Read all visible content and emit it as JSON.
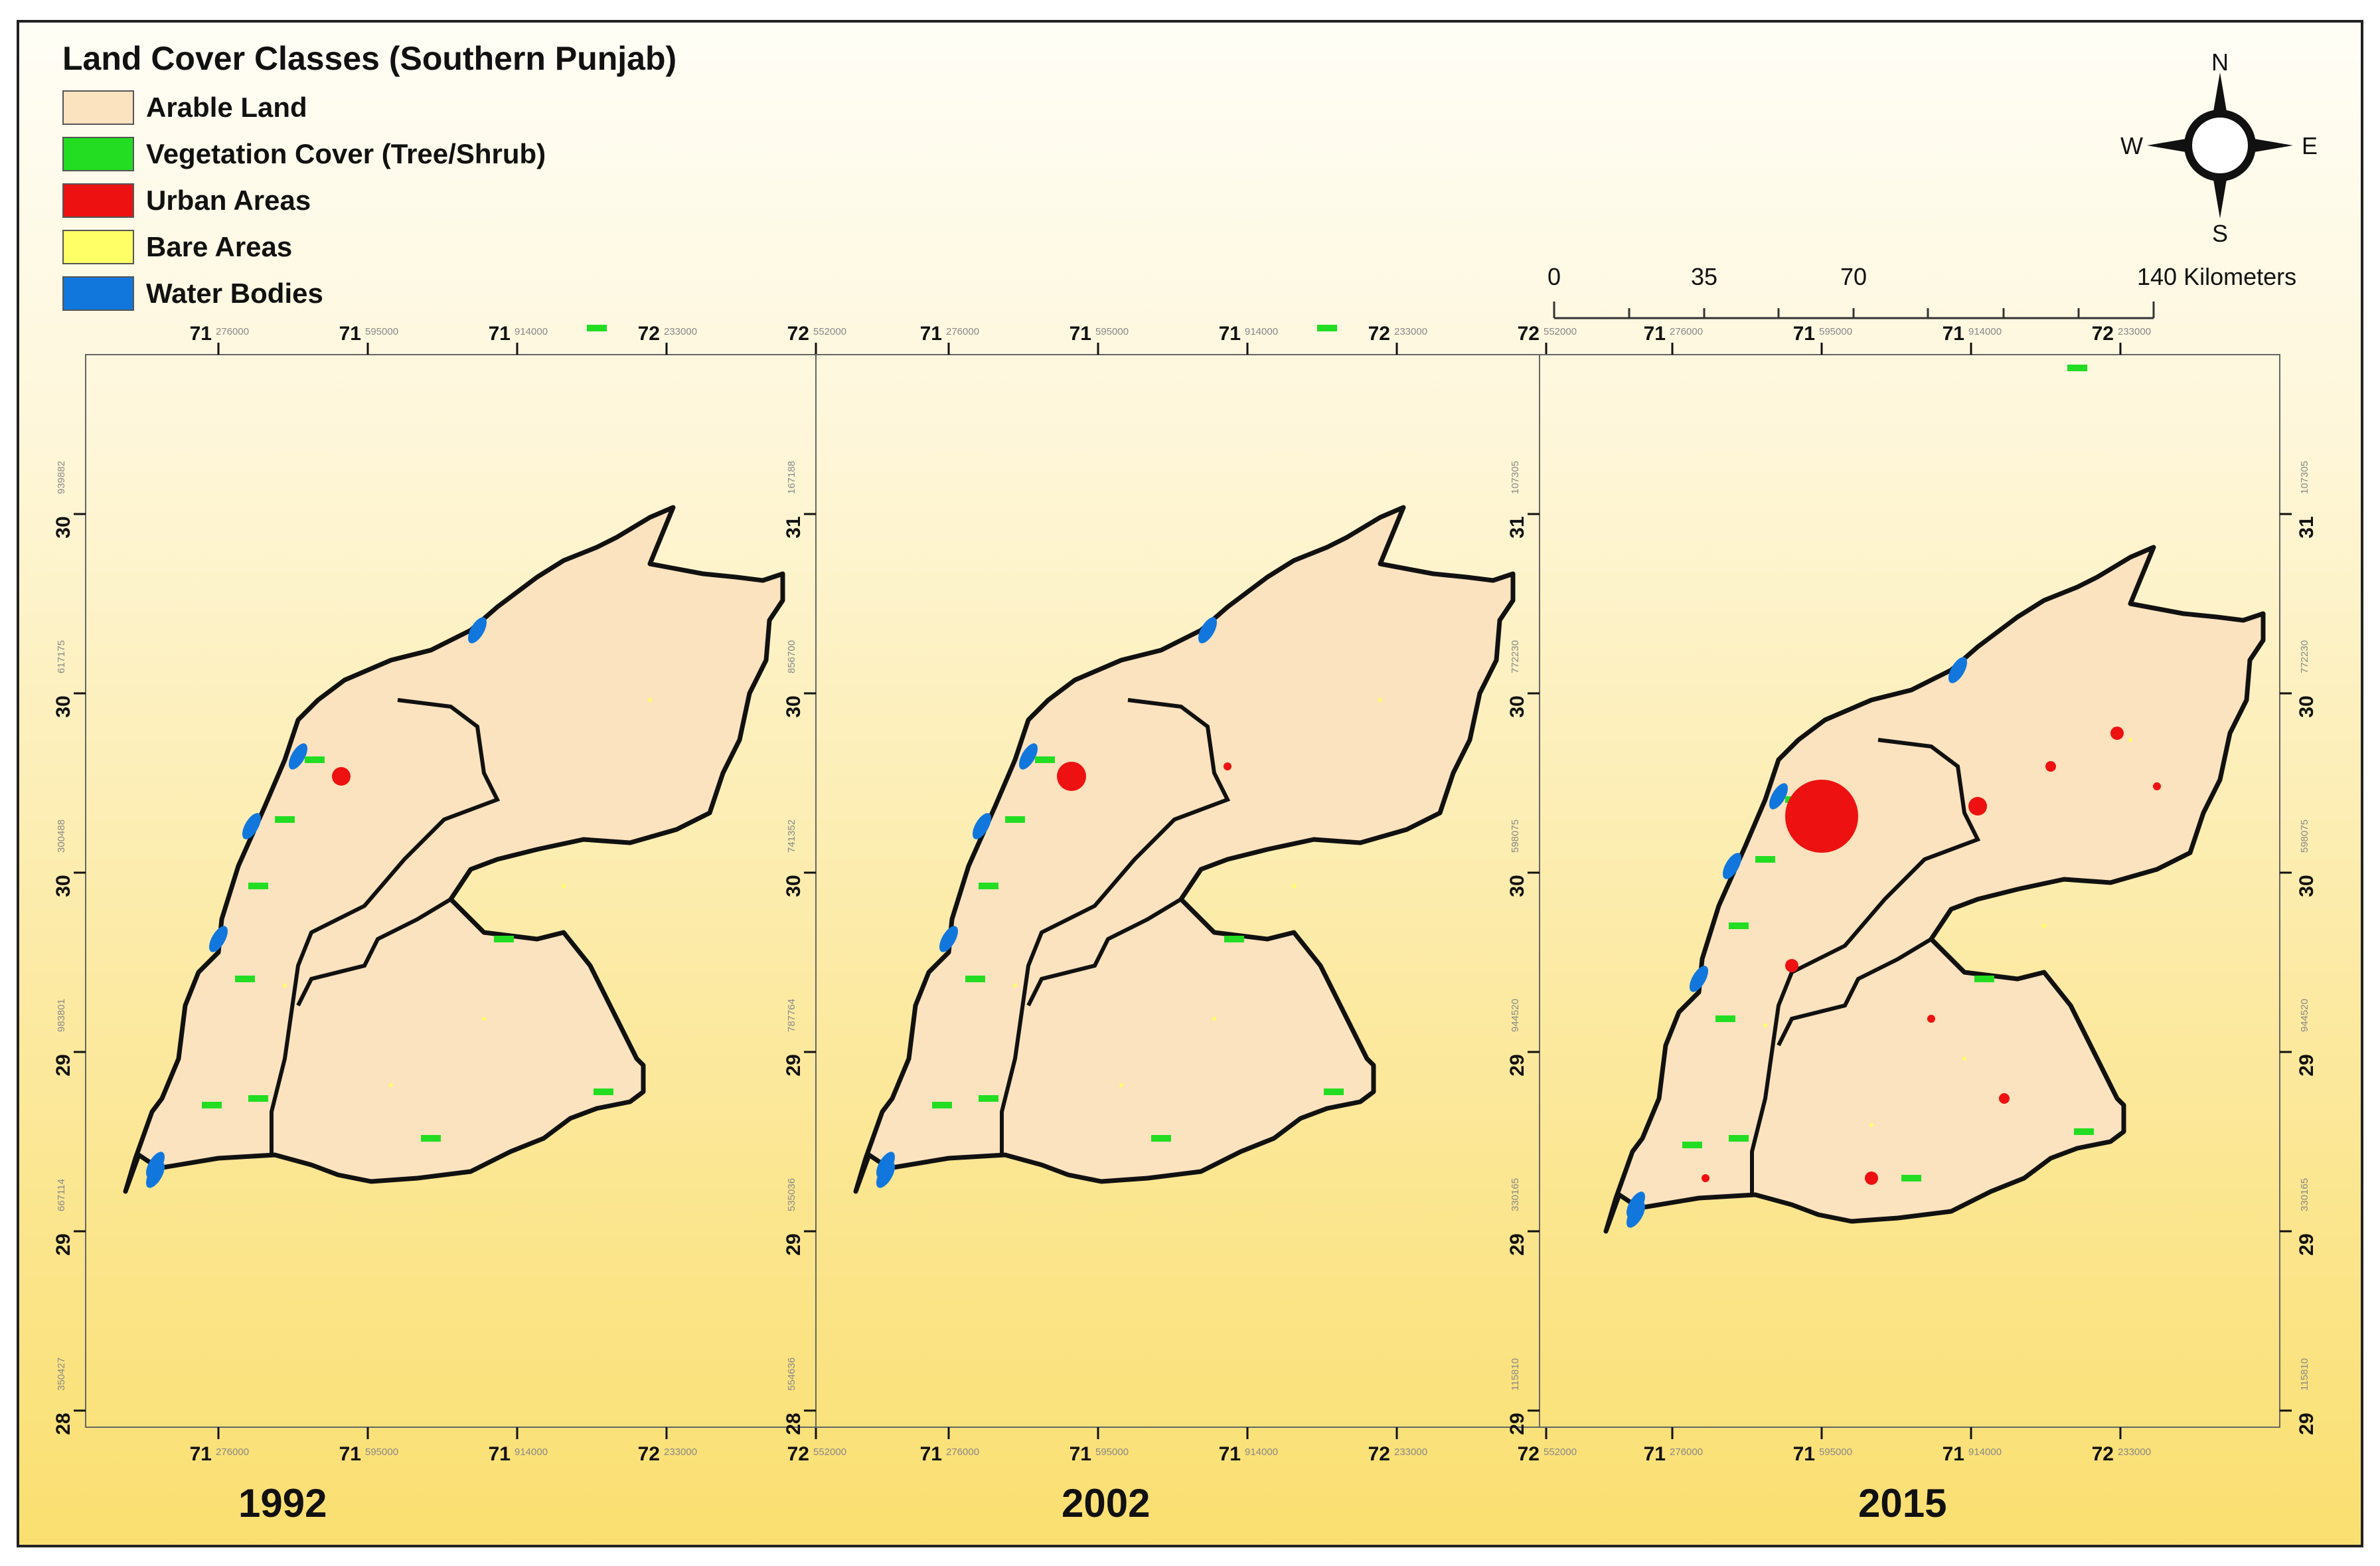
{
  "legend": {
    "title": "Land Cover Classes (Southern Punjab)",
    "items": [
      {
        "label": "Arable Land",
        "color": "#fbe3bf"
      },
      {
        "label": "Vegetation Cover (Tree/Shrub)",
        "color": "#22dd22"
      },
      {
        "label": "Urban Areas",
        "color": "#ee1111"
      },
      {
        "label": "Bare Areas",
        "color": "#ffff66"
      },
      {
        "label": "Water Bodies",
        "color": "#1177dd"
      }
    ]
  },
  "compass": {
    "north": "N",
    "south": "S",
    "east": "E",
    "west": "W",
    "icon": "north-arrow-icon"
  },
  "scale_bar": {
    "labels": [
      "0",
      "35",
      "70",
      "140 Kilometers"
    ]
  },
  "maps": [
    {
      "year": "1992",
      "top_ticks": [
        {
          "deg": "71",
          "sub": "276000"
        },
        {
          "deg": "71",
          "sub": "595000"
        },
        {
          "deg": "71",
          "sub": "914000"
        },
        {
          "deg": "72",
          "sub": "233000"
        },
        {
          "deg": "72",
          "sub": "552000"
        }
      ],
      "bottom_ticks": [
        {
          "deg": "71",
          "sub": "276000"
        },
        {
          "deg": "71",
          "sub": "595000"
        },
        {
          "deg": "71",
          "sub": "914000"
        },
        {
          "deg": "72",
          "sub": "233000"
        },
        {
          "deg": "72",
          "sub": "552000"
        }
      ],
      "left_ticks": [
        {
          "deg": "30",
          "sub": "939882"
        },
        {
          "deg": "30",
          "sub": "617175"
        },
        {
          "deg": "30",
          "sub": "300488"
        },
        {
          "deg": "29",
          "sub": "983801"
        },
        {
          "deg": "29",
          "sub": "667114"
        },
        {
          "deg": "28",
          "sub": "350427"
        }
      ]
    },
    {
      "year": "2002",
      "top_ticks": [
        {
          "deg": "71",
          "sub": "276000"
        },
        {
          "deg": "71",
          "sub": "595000"
        },
        {
          "deg": "71",
          "sub": "914000"
        },
        {
          "deg": "72",
          "sub": "233000"
        },
        {
          "deg": "72",
          "sub": "552000"
        }
      ],
      "bottom_ticks": [
        {
          "deg": "71",
          "sub": "276000"
        },
        {
          "deg": "71",
          "sub": "595000"
        },
        {
          "deg": "71",
          "sub": "914000"
        },
        {
          "deg": "72",
          "sub": "233000"
        },
        {
          "deg": "72",
          "sub": "552000"
        }
      ],
      "left_ticks": [
        {
          "deg": "31",
          "sub": "167188"
        },
        {
          "deg": "30",
          "sub": "856700"
        },
        {
          "deg": "30",
          "sub": "741352"
        },
        {
          "deg": "29",
          "sub": "787764"
        },
        {
          "deg": "29",
          "sub": "535036"
        },
        {
          "deg": "28",
          "sub": "554636"
        }
      ]
    },
    {
      "year": "2015",
      "top_ticks": [
        {
          "deg": "71",
          "sub": "276000"
        },
        {
          "deg": "71",
          "sub": "595000"
        },
        {
          "deg": "71",
          "sub": "914000"
        },
        {
          "deg": "72",
          "sub": "233000"
        }
      ],
      "bottom_ticks": [
        {
          "deg": "71",
          "sub": "276000"
        },
        {
          "deg": "71",
          "sub": "595000"
        },
        {
          "deg": "71",
          "sub": "914000"
        },
        {
          "deg": "72",
          "sub": "233000"
        }
      ],
      "left_ticks": [
        {
          "deg": "31",
          "sub": "107305"
        },
        {
          "deg": "30",
          "sub": "772230"
        },
        {
          "deg": "30",
          "sub": "598075"
        },
        {
          "deg": "29",
          "sub": "944520"
        },
        {
          "deg": "29",
          "sub": "330165"
        },
        {
          "deg": "29",
          "sub": "115810"
        }
      ],
      "right_ticks": [
        {
          "deg": "31",
          "sub": "107305"
        },
        {
          "deg": "30",
          "sub": "772230"
        },
        {
          "deg": "30",
          "sub": "598075"
        },
        {
          "deg": "29",
          "sub": "944520"
        },
        {
          "deg": "29",
          "sub": "330165"
        },
        {
          "deg": "29",
          "sub": "115810"
        }
      ]
    }
  ]
}
